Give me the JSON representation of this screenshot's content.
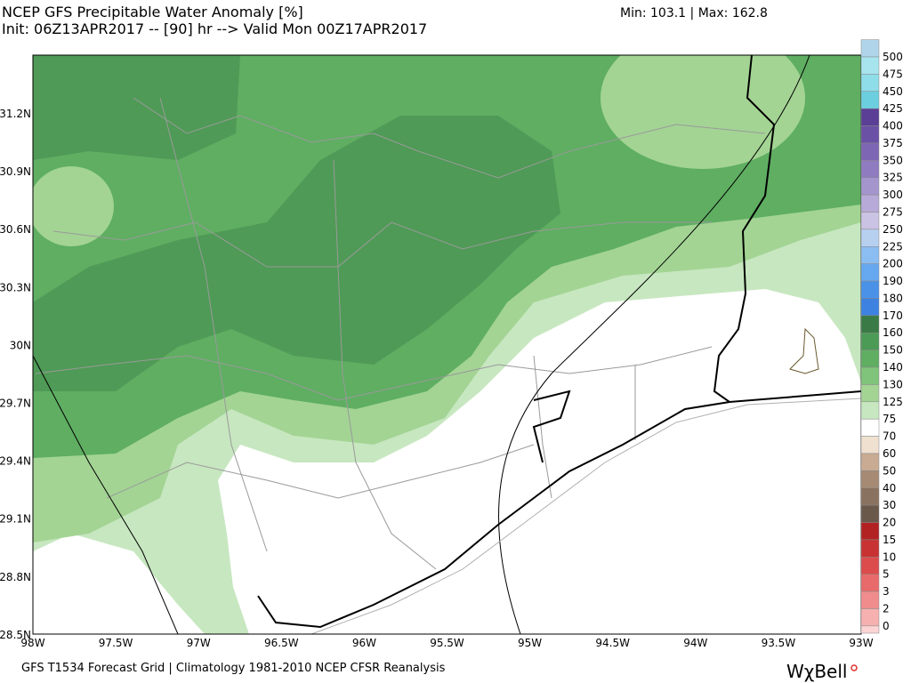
{
  "header": {
    "title": "NCEP GFS Precipitable Water Anomaly [%]",
    "subtitle": "Init: 06Z13APR2017 -- [90] hr --> Valid Mon 00Z17APR2017",
    "stats": "Min: 103.1 | Max: 162.8"
  },
  "map": {
    "lat_labels": [
      "31.2N",
      "30.9N",
      "30.6N",
      "30.3N",
      "30N",
      "29.7N",
      "29.4N",
      "29.1N",
      "28.8N",
      "28.5N"
    ],
    "lon_labels": [
      "98W",
      "97.5W",
      "97W",
      "96.5W",
      "96W",
      "95.5W",
      "95W",
      "94.5W",
      "94W",
      "93.5W",
      "93W"
    ]
  },
  "colorbar": [
    {
      "label": 500,
      "color": "#a8e4ee"
    },
    {
      "label": 475,
      "color": "#8fdde9"
    },
    {
      "label": 450,
      "color": "#6ccfe0"
    },
    {
      "label": 425,
      "color": "#5b3f96"
    },
    {
      "label": 400,
      "color": "#6b51a6"
    },
    {
      "label": 375,
      "color": "#7d66b3"
    },
    {
      "label": 350,
      "color": "#8f7cc0"
    },
    {
      "label": 325,
      "color": "#a495cd"
    },
    {
      "label": 300,
      "color": "#b7aad8"
    },
    {
      "label": 275,
      "color": "#cbc3e3"
    },
    {
      "label": 250,
      "color": "#b8d0f0"
    },
    {
      "label": 225,
      "color": "#8cbdf2"
    },
    {
      "label": 200,
      "color": "#66a8f0"
    },
    {
      "label": 190,
      "color": "#4a92e8"
    },
    {
      "label": 180,
      "color": "#3d82e0"
    },
    {
      "label": 170,
      "color": "#3a7a46"
    },
    {
      "label": 160,
      "color": "#4b9a55"
    },
    {
      "label": 150,
      "color": "#5fae62"
    },
    {
      "label": 140,
      "color": "#80c37a"
    },
    {
      "label": 130,
      "color": "#a3d494"
    },
    {
      "label": 125,
      "color": "#c7e7c0"
    },
    {
      "label": 75,
      "color": "#ffffff"
    },
    {
      "label": 70,
      "color": "#efe0cf"
    },
    {
      "label": 60,
      "color": "#c8ab92"
    },
    {
      "label": 50,
      "color": "#a68a74"
    },
    {
      "label": 40,
      "color": "#8a7260"
    },
    {
      "label": 30,
      "color": "#6a584b"
    },
    {
      "label": 20,
      "color": "#b22222"
    },
    {
      "label": 15,
      "color": "#c83232"
    },
    {
      "label": 10,
      "color": "#dc4c4c"
    },
    {
      "label": 5,
      "color": "#e86a6a"
    },
    {
      "label": 3,
      "color": "#f08c8c"
    },
    {
      "label": 2,
      "color": "#f6b0b0"
    },
    {
      "label": 0,
      "color": "#fcd4d4"
    }
  ],
  "footer": {
    "source": "GFS T1534 Forecast Grid | Climatology 1981-2010 NCEP CFSR Reanalysis",
    "logo": "WχBell"
  }
}
